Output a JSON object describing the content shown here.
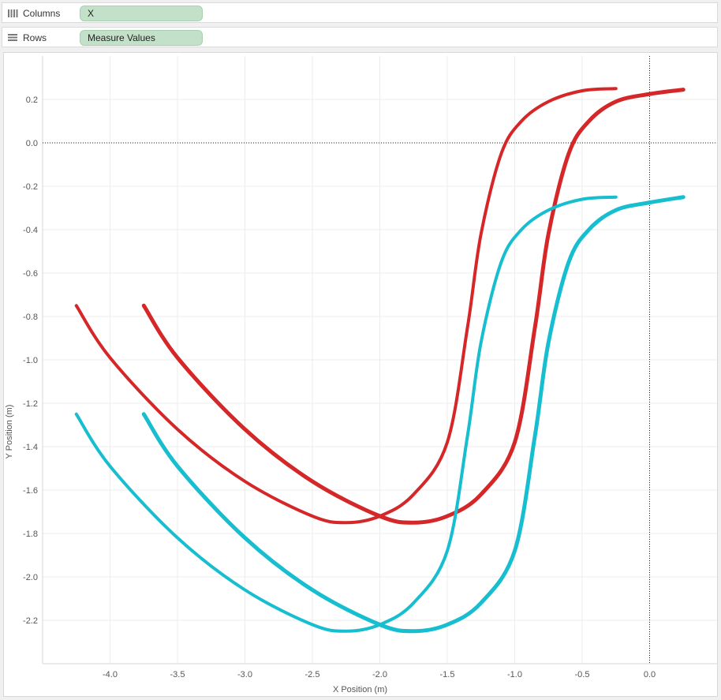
{
  "shelves": {
    "columns": {
      "label": "Columns",
      "pill": "X",
      "icon": "columns-icon"
    },
    "rows": {
      "label": "Rows",
      "pill": "Measure Values",
      "icon": "rows-icon"
    }
  },
  "colors": {
    "red": "#d62728",
    "cyan": "#17becf",
    "grid": "#ececec",
    "zero_line": "#222222",
    "axis_text": "#555555",
    "pill_bg": "#c3e1c9"
  },
  "chart_data": {
    "type": "line",
    "xlabel": "X Position (m)",
    "ylabel": "Y Position (m)",
    "xlim": [
      -4.5,
      0.5
    ],
    "ylim": [
      -2.4,
      0.4
    ],
    "x_ticks": [
      -4.0,
      -3.5,
      -3.0,
      -2.5,
      -2.0,
      -1.5,
      -1.0,
      -0.5,
      0.0
    ],
    "y_ticks": [
      0.2,
      0.0,
      -0.2,
      -0.4,
      -0.6,
      -0.8,
      -1.0,
      -1.2,
      -1.4,
      -1.6,
      -1.8,
      -2.0,
      -2.2
    ],
    "grid": true,
    "zero_lines": true,
    "series": [
      {
        "color": "#d62728",
        "width": 4,
        "points": [
          [
            -4.25,
            -0.75
          ],
          [
            -4.0,
            -0.99
          ],
          [
            -3.5,
            -1.32
          ],
          [
            -3.0,
            -1.56
          ],
          [
            -2.5,
            -1.72
          ],
          [
            -2.25,
            -1.75
          ],
          [
            -2.0,
            -1.72
          ],
          [
            -1.75,
            -1.62
          ],
          [
            -1.5,
            -1.38
          ],
          [
            -1.35,
            -0.85
          ],
          [
            -1.25,
            -0.42
          ],
          [
            -1.1,
            -0.05
          ],
          [
            -0.95,
            0.1
          ],
          [
            -0.75,
            0.19
          ],
          [
            -0.5,
            0.24
          ],
          [
            -0.25,
            0.25
          ]
        ]
      },
      {
        "color": "#d62728",
        "width": 5,
        "points": [
          [
            -3.75,
            -0.75
          ],
          [
            -3.5,
            -0.99
          ],
          [
            -3.0,
            -1.32
          ],
          [
            -2.5,
            -1.56
          ],
          [
            -2.0,
            -1.72
          ],
          [
            -1.75,
            -1.75
          ],
          [
            -1.5,
            -1.72
          ],
          [
            -1.25,
            -1.62
          ],
          [
            -1.0,
            -1.38
          ],
          [
            -0.85,
            -0.85
          ],
          [
            -0.75,
            -0.42
          ],
          [
            -0.6,
            -0.05
          ],
          [
            -0.45,
            0.1
          ],
          [
            -0.25,
            0.19
          ],
          [
            0.0,
            0.225
          ],
          [
            0.25,
            0.245
          ]
        ]
      },
      {
        "color": "#17becf",
        "width": 4,
        "points": [
          [
            -4.25,
            -1.25
          ],
          [
            -4.0,
            -1.49
          ],
          [
            -3.5,
            -1.82
          ],
          [
            -3.0,
            -2.06
          ],
          [
            -2.5,
            -2.22
          ],
          [
            -2.25,
            -2.25
          ],
          [
            -2.0,
            -2.22
          ],
          [
            -1.75,
            -2.12
          ],
          [
            -1.5,
            -1.88
          ],
          [
            -1.35,
            -1.35
          ],
          [
            -1.25,
            -0.92
          ],
          [
            -1.1,
            -0.55
          ],
          [
            -0.95,
            -0.4
          ],
          [
            -0.75,
            -0.31
          ],
          [
            -0.5,
            -0.26
          ],
          [
            -0.25,
            -0.25
          ]
        ]
      },
      {
        "color": "#17becf",
        "width": 5,
        "points": [
          [
            -3.75,
            -1.25
          ],
          [
            -3.5,
            -1.49
          ],
          [
            -3.0,
            -1.82
          ],
          [
            -2.5,
            -2.06
          ],
          [
            -2.0,
            -2.22
          ],
          [
            -1.75,
            -2.25
          ],
          [
            -1.5,
            -2.22
          ],
          [
            -1.25,
            -2.12
          ],
          [
            -1.0,
            -1.88
          ],
          [
            -0.85,
            -1.35
          ],
          [
            -0.75,
            -0.92
          ],
          [
            -0.6,
            -0.55
          ],
          [
            -0.45,
            -0.4
          ],
          [
            -0.25,
            -0.31
          ],
          [
            0.0,
            -0.275
          ],
          [
            0.25,
            -0.25
          ]
        ]
      }
    ]
  }
}
